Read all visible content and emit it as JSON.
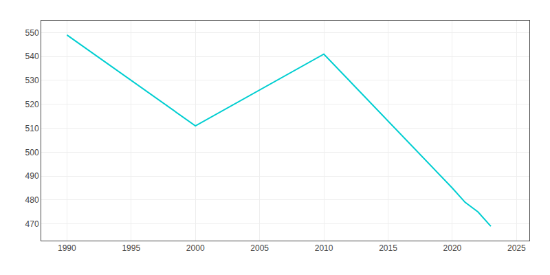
{
  "chart_data": {
    "type": "line",
    "x": [
      1990,
      2000,
      2010,
      2020,
      2021,
      2022,
      2023
    ],
    "values": [
      549,
      511,
      541,
      485,
      479,
      475,
      469
    ],
    "color": "#00CED1",
    "xlim": [
      1988,
      2026
    ],
    "xticks": [
      1990,
      1995,
      2000,
      2005,
      2010,
      2015,
      2020,
      2025
    ],
    "ylim": [
      463,
      555
    ],
    "yticks": [
      470,
      480,
      490,
      500,
      510,
      520,
      530,
      540,
      550
    ],
    "grid": true
  }
}
